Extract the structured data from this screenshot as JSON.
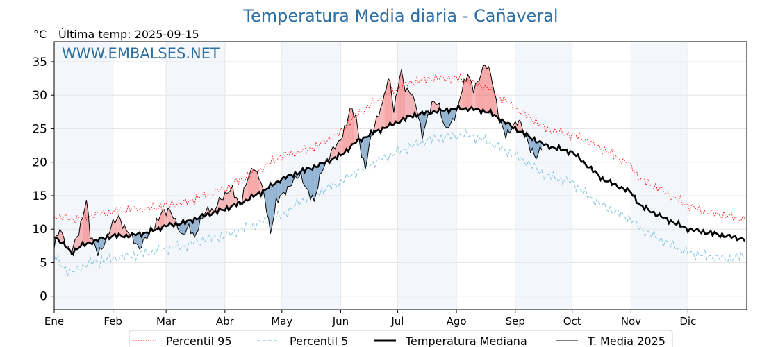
{
  "chart_data": {
    "type": "line",
    "title": "Temperatura Media diaria - Cañaveral",
    "unit": "°C",
    "subtitle": "Última temp: 2025-09-15",
    "watermark": "WWW.EMBALSES.NET",
    "ylim": [
      -2,
      38
    ],
    "yticks": [
      0,
      5,
      10,
      15,
      20,
      25,
      30,
      35
    ],
    "months": [
      "Ene",
      "Feb",
      "Mar",
      "Abr",
      "May",
      "Jun",
      "Jul",
      "Ago",
      "Sep",
      "Oct",
      "Nov",
      "Dic"
    ],
    "month_start_days": [
      1,
      32,
      60,
      91,
      121,
      152,
      182,
      213,
      244,
      274,
      305,
      335
    ],
    "days_in_year": 365,
    "last_day_2025": 258,
    "grid": true,
    "legend_position": "bottom",
    "colors": {
      "p95": "#ff0000",
      "p5": "#8cc8dc",
      "median": "#000000",
      "t2025": "#000000",
      "above": "#f08080",
      "above_extreme": "#f06060",
      "below": "#7aa3c8",
      "band": "#dce9f5",
      "title": "#2e6fa3"
    },
    "series": [
      {
        "name": "Percentil 95",
        "style": "dotted",
        "anchors": [
          [
            1,
            12.0
          ],
          [
            10,
            11.5
          ],
          [
            20,
            12.0
          ],
          [
            30,
            12.5
          ],
          [
            40,
            13.0
          ],
          [
            50,
            13.0
          ],
          [
            60,
            13.5
          ],
          [
            70,
            14.0
          ],
          [
            80,
            15.0
          ],
          [
            91,
            16.0
          ],
          [
            100,
            17.5
          ],
          [
            110,
            19.0
          ],
          [
            121,
            21.0
          ],
          [
            130,
            21.5
          ],
          [
            140,
            22.5
          ],
          [
            152,
            24.5
          ],
          [
            160,
            27.0
          ],
          [
            170,
            29.0
          ],
          [
            182,
            31.0
          ],
          [
            190,
            32.0
          ],
          [
            200,
            32.5
          ],
          [
            213,
            32.5
          ],
          [
            220,
            32.0
          ],
          [
            230,
            31.0
          ],
          [
            244,
            28.0
          ],
          [
            250,
            27.0
          ],
          [
            260,
            25.0
          ],
          [
            274,
            24.0
          ],
          [
            280,
            23.5
          ],
          [
            290,
            22.0
          ],
          [
            305,
            19.5
          ],
          [
            310,
            17.5
          ],
          [
            320,
            16.0
          ],
          [
            335,
            13.5
          ],
          [
            345,
            12.5
          ],
          [
            355,
            12.0
          ],
          [
            365,
            11.5
          ]
        ]
      },
      {
        "name": "Percentil 5",
        "style": "dashed",
        "anchors": [
          [
            1,
            6.0
          ],
          [
            5,
            4.5
          ],
          [
            10,
            3.5
          ],
          [
            20,
            5.0
          ],
          [
            30,
            5.5
          ],
          [
            40,
            6.0
          ],
          [
            50,
            6.5
          ],
          [
            60,
            7.0
          ],
          [
            70,
            7.5
          ],
          [
            80,
            8.5
          ],
          [
            91,
            9.0
          ],
          [
            100,
            10.0
          ],
          [
            110,
            11.0
          ],
          [
            121,
            12.0
          ],
          [
            130,
            14.0
          ],
          [
            140,
            15.5
          ],
          [
            152,
            17.0
          ],
          [
            160,
            18.5
          ],
          [
            170,
            20.0
          ],
          [
            182,
            21.5
          ],
          [
            190,
            22.5
          ],
          [
            200,
            23.5
          ],
          [
            213,
            24.0
          ],
          [
            220,
            24.0
          ],
          [
            230,
            23.0
          ],
          [
            244,
            21.0
          ],
          [
            250,
            20.0
          ],
          [
            260,
            18.0
          ],
          [
            274,
            17.0
          ],
          [
            280,
            15.5
          ],
          [
            290,
            13.5
          ],
          [
            305,
            11.5
          ],
          [
            310,
            10.0
          ],
          [
            320,
            8.5
          ],
          [
            335,
            6.5
          ],
          [
            345,
            6.0
          ],
          [
            355,
            5.5
          ],
          [
            365,
            6.0
          ]
        ]
      },
      {
        "name": "Temperatura Mediana",
        "style": "solid-thick",
        "anchors": [
          [
            1,
            9.0
          ],
          [
            5,
            8.0
          ],
          [
            10,
            6.5
          ],
          [
            15,
            7.5
          ],
          [
            20,
            8.0
          ],
          [
            25,
            8.5
          ],
          [
            32,
            9.0
          ],
          [
            40,
            9.0
          ],
          [
            50,
            9.5
          ],
          [
            60,
            10.5
          ],
          [
            70,
            11.0
          ],
          [
            80,
            12.0
          ],
          [
            91,
            13.0
          ],
          [
            100,
            14.0
          ],
          [
            110,
            15.5
          ],
          [
            121,
            17.5
          ],
          [
            130,
            18.5
          ],
          [
            140,
            19.5
          ],
          [
            152,
            21.0
          ],
          [
            160,
            23.0
          ],
          [
            170,
            24.5
          ],
          [
            182,
            26.0
          ],
          [
            190,
            27.0
          ],
          [
            200,
            27.5
          ],
          [
            213,
            28.0
          ],
          [
            220,
            28.0
          ],
          [
            230,
            27.5
          ],
          [
            244,
            25.0
          ],
          [
            250,
            24.0
          ],
          [
            260,
            22.5
          ],
          [
            274,
            21.5
          ],
          [
            280,
            20.0
          ],
          [
            290,
            17.5
          ],
          [
            305,
            15.5
          ],
          [
            310,
            13.5
          ],
          [
            320,
            12.0
          ],
          [
            335,
            10.0
          ],
          [
            345,
            9.5
          ],
          [
            355,
            9.0
          ],
          [
            365,
            8.5
          ]
        ]
      },
      {
        "name": "T. Media 2025",
        "style": "solid-thin",
        "anchors": [
          [
            1,
            7.5
          ],
          [
            4,
            10.0
          ],
          [
            7,
            8.0
          ],
          [
            10,
            6.5
          ],
          [
            14,
            9.5
          ],
          [
            18,
            14.5
          ],
          [
            20,
            9.0
          ],
          [
            24,
            6.5
          ],
          [
            28,
            8.0
          ],
          [
            32,
            11.0
          ],
          [
            35,
            12.0
          ],
          [
            38,
            10.0
          ],
          [
            42,
            9.0
          ],
          [
            46,
            7.0
          ],
          [
            50,
            9.0
          ],
          [
            54,
            10.5
          ],
          [
            58,
            12.5
          ],
          [
            62,
            13.0
          ],
          [
            65,
            11.0
          ],
          [
            68,
            9.0
          ],
          [
            72,
            10.5
          ],
          [
            75,
            8.5
          ],
          [
            79,
            12.0
          ],
          [
            82,
            13.0
          ],
          [
            85,
            12.5
          ],
          [
            88,
            14.5
          ],
          [
            91,
            15.0
          ],
          [
            95,
            16.0
          ],
          [
            99,
            13.5
          ],
          [
            103,
            17.5
          ],
          [
            106,
            19.5
          ],
          [
            110,
            17.0
          ],
          [
            113,
            13.0
          ],
          [
            115,
            9.5
          ],
          [
            118,
            14.0
          ],
          [
            121,
            15.0
          ],
          [
            125,
            16.5
          ],
          [
            128,
            17.5
          ],
          [
            131,
            18.0
          ],
          [
            135,
            15.5
          ],
          [
            138,
            14.0
          ],
          [
            142,
            19.0
          ],
          [
            145,
            20.0
          ],
          [
            148,
            22.0
          ],
          [
            152,
            23.5
          ],
          [
            155,
            25.5
          ],
          [
            157,
            28.0
          ],
          [
            160,
            27.0
          ],
          [
            163,
            21.0
          ],
          [
            165,
            19.0
          ],
          [
            168,
            24.0
          ],
          [
            171,
            26.5
          ],
          [
            174,
            28.5
          ],
          [
            176,
            31.5
          ],
          [
            178,
            32.5
          ],
          [
            180,
            27.5
          ],
          [
            182,
            31.0
          ],
          [
            184,
            33.5
          ],
          [
            186,
            31.0
          ],
          [
            189,
            30.5
          ],
          [
            192,
            28.0
          ],
          [
            195,
            24.0
          ],
          [
            198,
            27.0
          ],
          [
            201,
            29.0
          ],
          [
            204,
            28.5
          ],
          [
            207,
            25.0
          ],
          [
            210,
            25.5
          ],
          [
            213,
            27.5
          ],
          [
            216,
            31.0
          ],
          [
            219,
            33.0
          ],
          [
            222,
            31.0
          ],
          [
            225,
            32.5
          ],
          [
            228,
            34.5
          ],
          [
            231,
            33.5
          ],
          [
            233,
            30.5
          ],
          [
            236,
            26.0
          ],
          [
            239,
            24.0
          ],
          [
            243,
            25.5
          ],
          [
            246,
            26.0
          ],
          [
            249,
            24.5
          ],
          [
            252,
            22.0
          ],
          [
            255,
            20.5
          ],
          [
            258,
            22.5
          ]
        ]
      }
    ]
  },
  "legend": {
    "p95": "Percentil 95",
    "p5": "Percentil 5",
    "median": "Temperatura Mediana",
    "t2025": "T. Media 2025"
  }
}
